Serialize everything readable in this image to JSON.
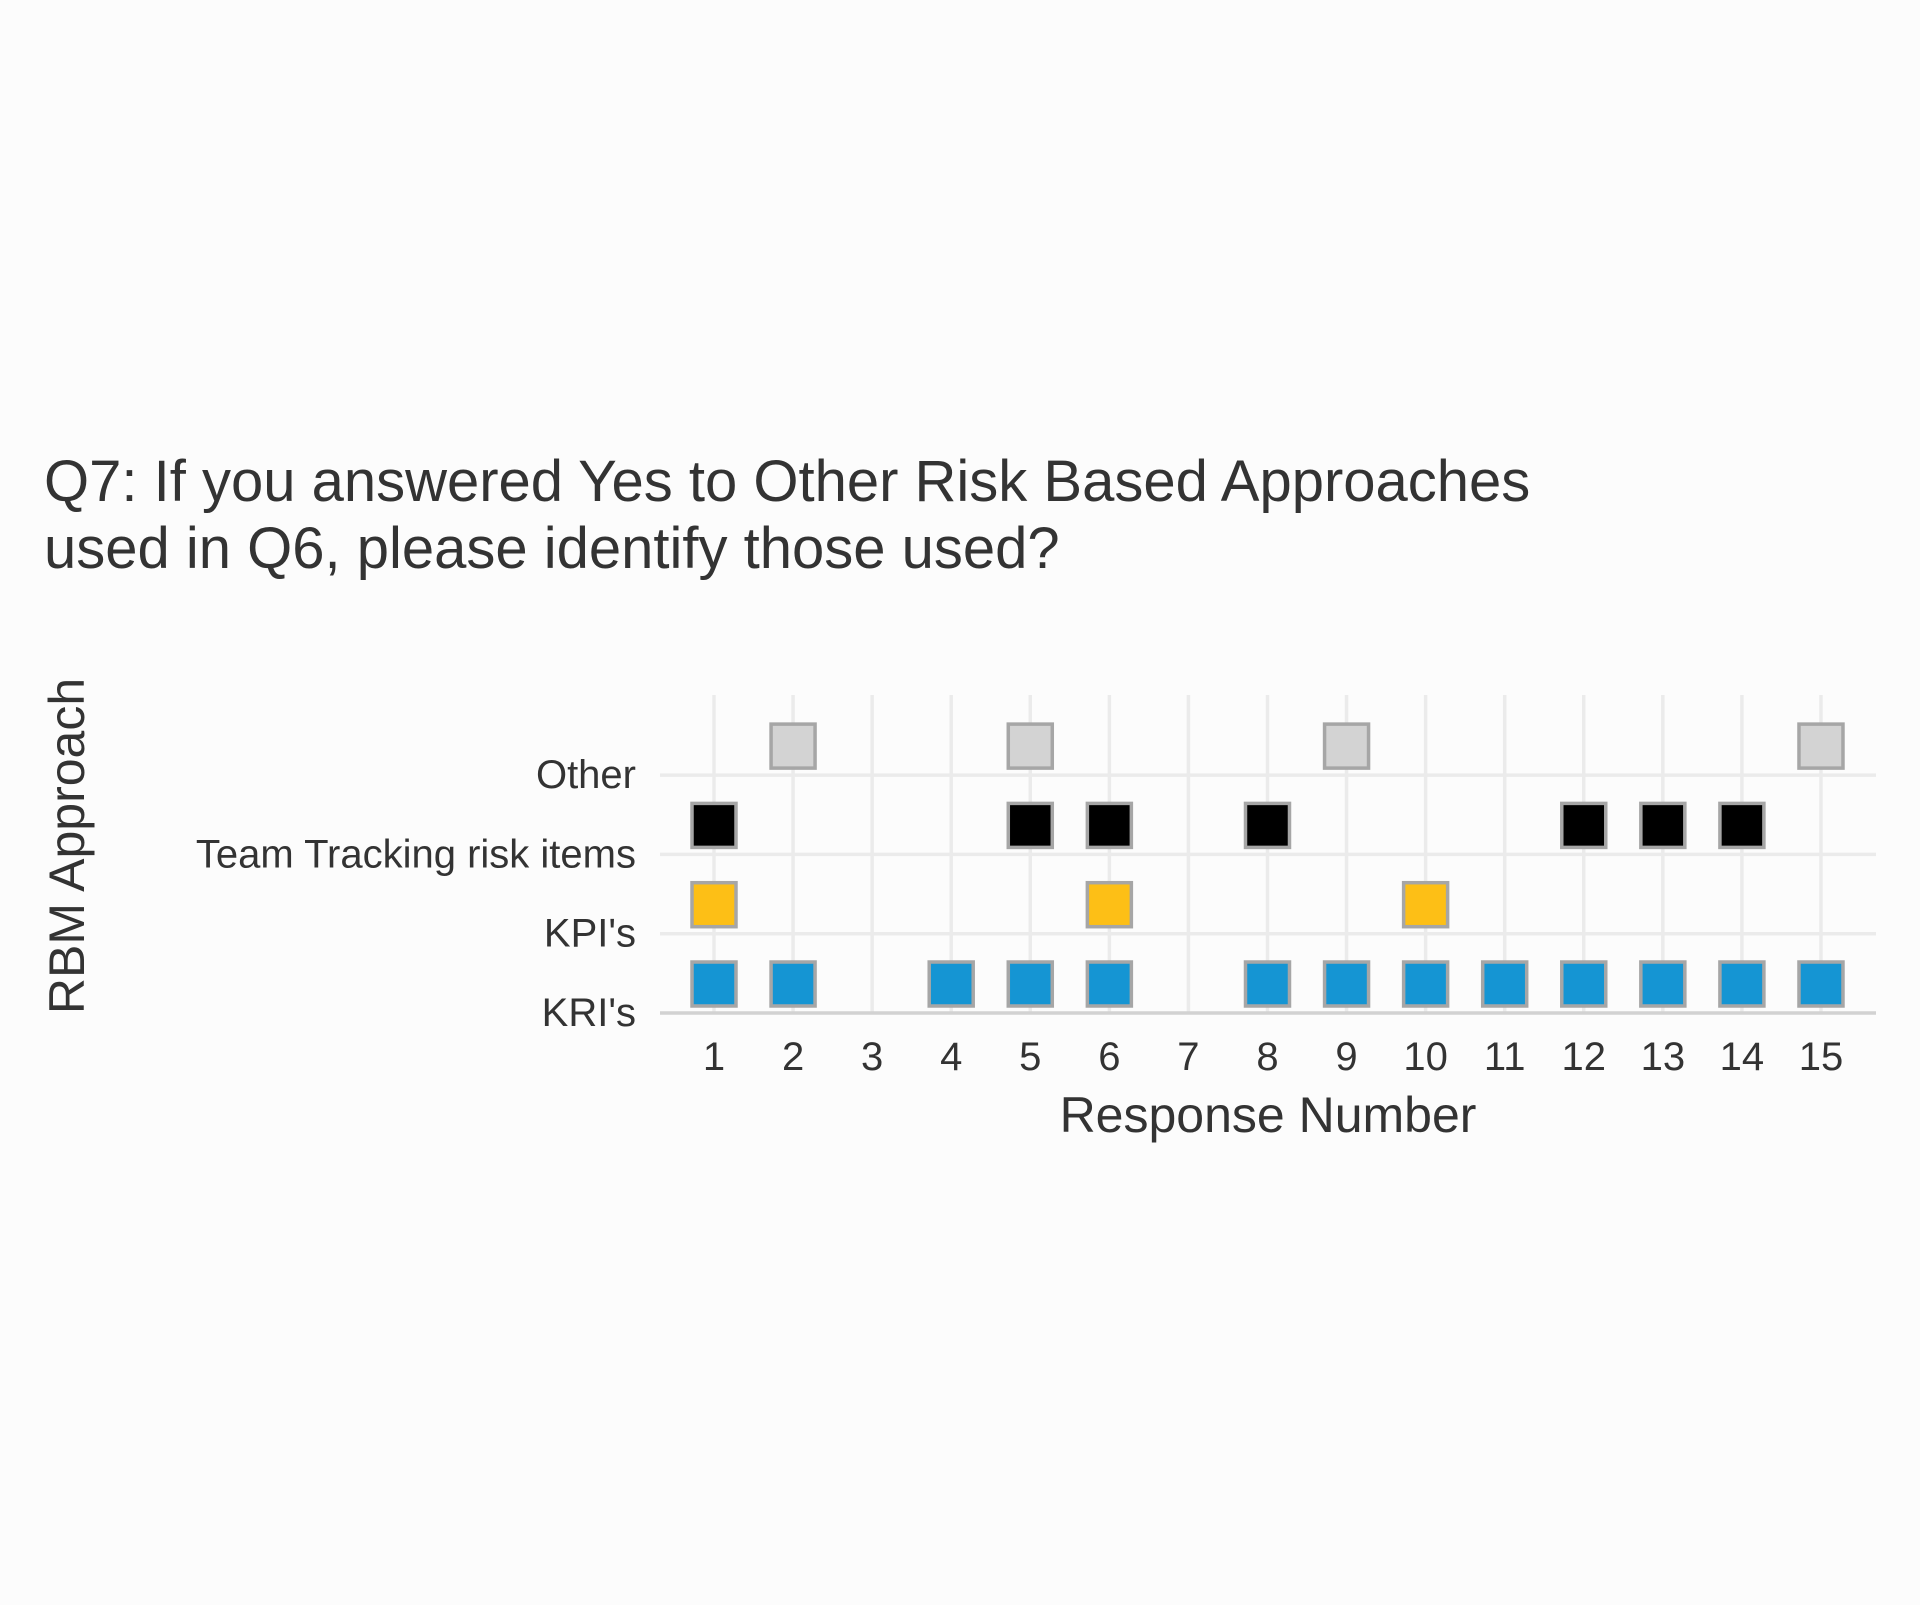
{
  "chart_data": {
    "type": "scatter",
    "title_lines": [
      "Q7: If you answered Yes to Other Risk Based Approaches",
      "used in Q6, please identify those used?"
    ],
    "xlabel": "Response Number",
    "ylabel": "RBM Approach",
    "x_ticks": [
      "1",
      "2",
      "3",
      "4",
      "5",
      "6",
      "7",
      "8",
      "9",
      "10",
      "11",
      "12",
      "13",
      "14",
      "15"
    ],
    "y_categories": [
      "KRI's",
      "KPI's",
      "Team Tracking risk items",
      "Other"
    ],
    "marker": "square",
    "marker_outline": "#a6a6a6",
    "series": [
      {
        "category": "KRI's",
        "color": "#1595d3",
        "x": [
          1,
          2,
          4,
          5,
          6,
          8,
          9,
          10,
          11,
          12,
          13,
          14,
          15
        ]
      },
      {
        "category": "KPI's",
        "color": "#fdbf16",
        "x": [
          1,
          6,
          10
        ]
      },
      {
        "category": "Team Tracking risk items",
        "color": "#000000",
        "x": [
          1,
          5,
          6,
          8,
          12,
          13,
          14
        ]
      },
      {
        "category": "Other",
        "color": "#d3d3d3",
        "x": [
          2,
          5,
          9,
          15
        ]
      }
    ],
    "grid": true,
    "legend": "none"
  }
}
